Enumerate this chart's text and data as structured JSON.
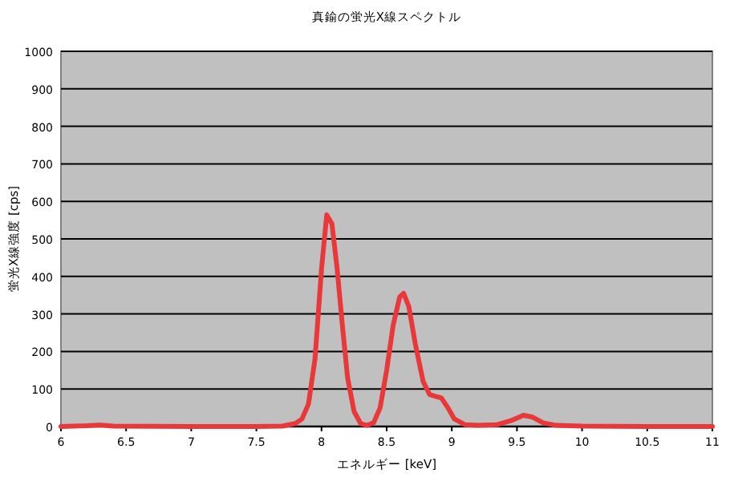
{
  "chart_data": {
    "type": "line",
    "title": "真鍮の蛍光X線スペクトル",
    "xlabel": "エネルギー [keV]",
    "ylabel": "蛍光X線強度 [cps]",
    "xlim": [
      6,
      11
    ],
    "xticks": [
      6,
      6.5,
      7,
      7.5,
      8,
      8.5,
      9,
      9.5,
      10,
      10.5,
      11
    ],
    "ylim": [
      0,
      1000
    ],
    "yticks": [
      0,
      100,
      200,
      300,
      400,
      500,
      600,
      700,
      800,
      900,
      1000
    ],
    "grid": "y",
    "marker": "none",
    "line_style": "solid",
    "series": [
      {
        "color": "#e8383a",
        "x": [
          6,
          6.2,
          6.3,
          6.4,
          7,
          7.5,
          7.7,
          7.8,
          7.85,
          7.9,
          7.95,
          8,
          8.04,
          8.08,
          8.12,
          8.16,
          8.2,
          8.25,
          8.3,
          8.35,
          8.4,
          8.45,
          8.5,
          8.55,
          8.6,
          8.63,
          8.67,
          8.72,
          8.78,
          8.83,
          8.88,
          8.92,
          8.97,
          9.02,
          9.1,
          9.2,
          9.35,
          9.45,
          9.55,
          9.62,
          9.7,
          9.8,
          10,
          10.5,
          11
        ],
        "values": [
          0,
          2,
          4,
          1,
          0,
          0,
          1,
          8,
          20,
          60,
          180,
          420,
          564,
          540,
          420,
          270,
          130,
          40,
          8,
          3,
          10,
          50,
          150,
          270,
          345,
          355,
          320,
          220,
          120,
          85,
          80,
          76,
          50,
          20,
          5,
          3,
          5,
          15,
          30,
          25,
          10,
          3,
          1,
          0,
          0
        ]
      }
    ]
  }
}
